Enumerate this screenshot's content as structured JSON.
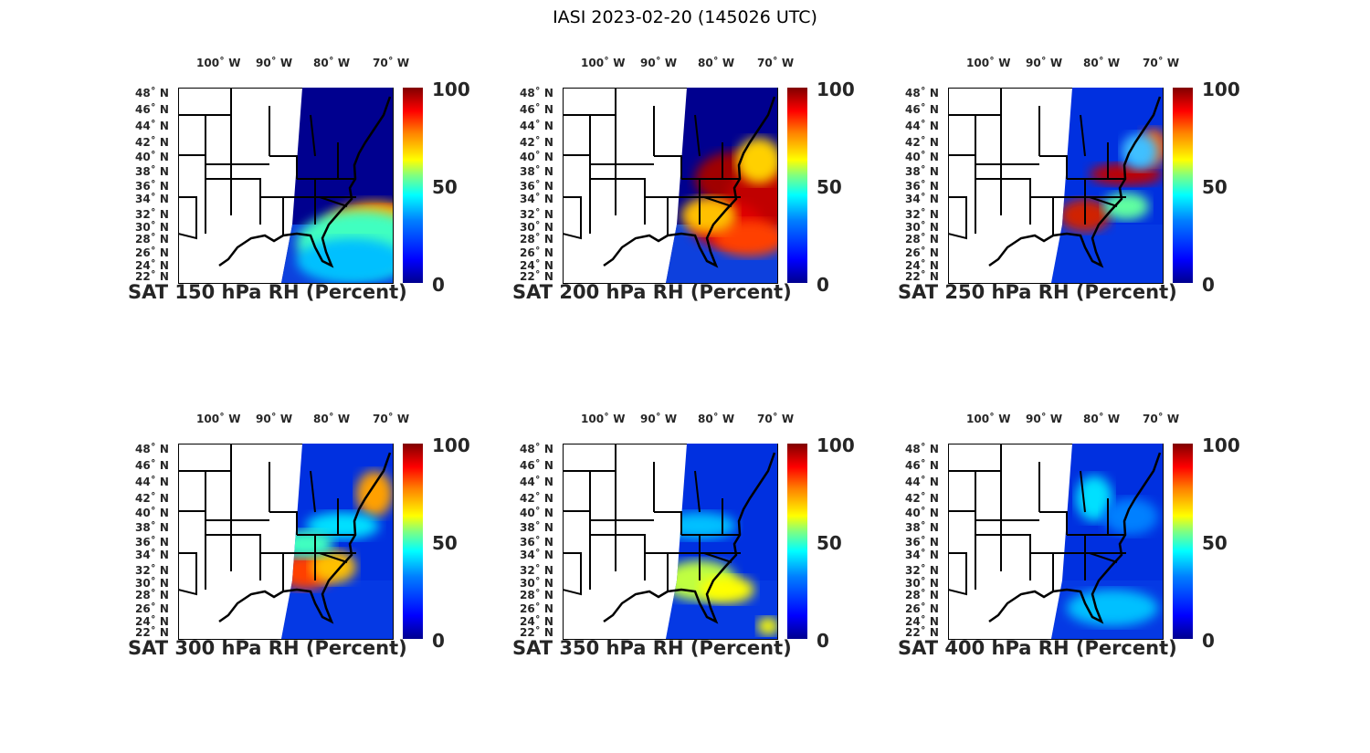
{
  "title": "IASI 2023-02-20 (145026 UTC)",
  "lon_labels": [
    "100˚ W",
    "90˚ W",
    "80˚ W",
    "70˚ W"
  ],
  "lat_labels": [
    "48˚ N",
    "46˚ N",
    "44˚ N",
    "42˚ N",
    "40˚ N",
    "38˚ N",
    "36˚ N",
    "34˚ N",
    "32˚ N",
    "30˚ N",
    "28˚ N",
    "26˚ N",
    "24˚ N",
    "22˚ N"
  ],
  "colorbar": {
    "ticks": [
      "100",
      "50",
      "0"
    ],
    "range": [
      0,
      100
    ],
    "colormap": "jet"
  },
  "panels": [
    {
      "title": "SAT 150 hPa RH (Percent)",
      "level_hpa": 150,
      "moist_region": "Southeast US / offshore Carolinas"
    },
    {
      "title": "SAT 200 hPa RH (Percent)",
      "level_hpa": 200,
      "moist_region": "Mid-Atlantic to Southeast, offshore"
    },
    {
      "title": "SAT 250 hPa RH (Percent)",
      "level_hpa": 250,
      "moist_region": "Mid-Atlantic coast and Southeast"
    },
    {
      "title": "SAT 300 hPa RH (Percent)",
      "level_hpa": 300,
      "moist_region": "Georgia / South Carolina"
    },
    {
      "title": "SAT 350 hPa RH (Percent)",
      "level_hpa": 350,
      "moist_region": "Southeast coast"
    },
    {
      "title": "SAT 400 hPa RH (Percent)",
      "level_hpa": 400,
      "moist_region": "scattered"
    }
  ]
}
